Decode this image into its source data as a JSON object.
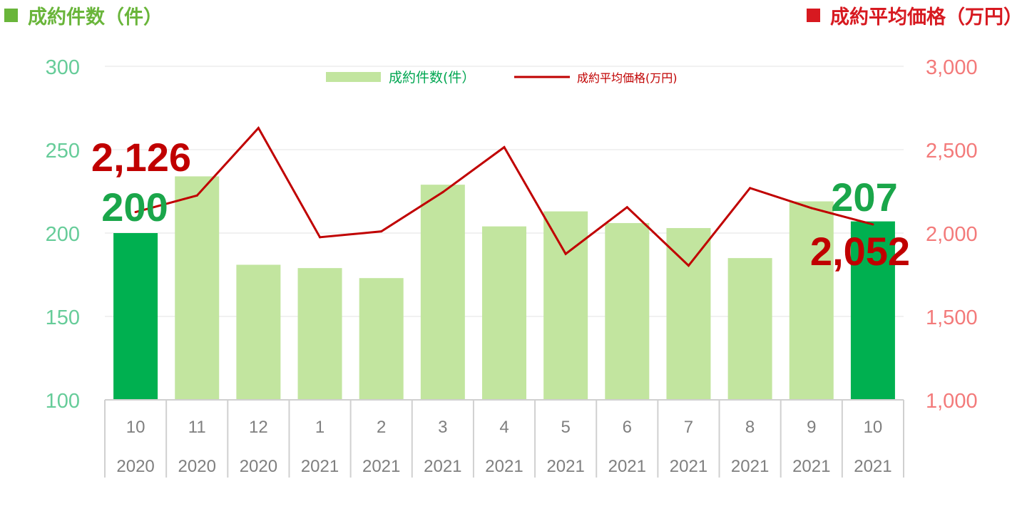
{
  "header": {
    "left_title": "成約件数（件）",
    "right_title": "成約平均価格（万円）"
  },
  "chart_data": {
    "type": "bar",
    "categories": [
      {
        "month": "10",
        "year": "2020"
      },
      {
        "month": "11",
        "year": "2020"
      },
      {
        "month": "12",
        "year": "2020"
      },
      {
        "month": "1",
        "year": "2021"
      },
      {
        "month": "2",
        "year": "2021"
      },
      {
        "month": "3",
        "year": "2021"
      },
      {
        "month": "4",
        "year": "2021"
      },
      {
        "month": "5",
        "year": "2021"
      },
      {
        "month": "6",
        "year": "2021"
      },
      {
        "month": "7",
        "year": "2021"
      },
      {
        "month": "8",
        "year": "2021"
      },
      {
        "month": "9",
        "year": "2021"
      },
      {
        "month": "10",
        "year": "2021"
      }
    ],
    "series": [
      {
        "name": "成約件数(件）",
        "type": "bar",
        "axis": "left",
        "values": [
          200,
          234,
          181,
          179,
          173,
          229,
          204,
          213,
          206,
          203,
          185,
          219,
          207
        ],
        "highlighted": [
          0,
          12
        ],
        "color": "#c2e59f",
        "highlight_color": "#00b050"
      },
      {
        "name": "成約平均価格(万円)",
        "type": "line",
        "axis": "right",
        "values": [
          2126,
          2225,
          2630,
          1975,
          2010,
          2245,
          2515,
          1875,
          2155,
          1805,
          2270,
          2150,
          2052
        ],
        "color": "#c00000"
      }
    ],
    "y_left": {
      "min": 100,
      "max": 300,
      "ticks": [
        "100",
        "150",
        "200",
        "250",
        "300"
      ],
      "color": "#66cc99"
    },
    "y_right": {
      "min": 1000,
      "max": 3000,
      "ticks": [
        "1,000",
        "1,500",
        "2,000",
        "2,500",
        "3,000"
      ],
      "color": "#f37a7a"
    },
    "annotations": [
      {
        "text": "2,126",
        "color": "#c00000"
      },
      {
        "text": "200",
        "color": "#1aa64a"
      },
      {
        "text": "207",
        "color": "#1aa64a"
      },
      {
        "text": "2,052",
        "color": "#c00000"
      }
    ],
    "legend_position": "top-center",
    "grid": true
  }
}
